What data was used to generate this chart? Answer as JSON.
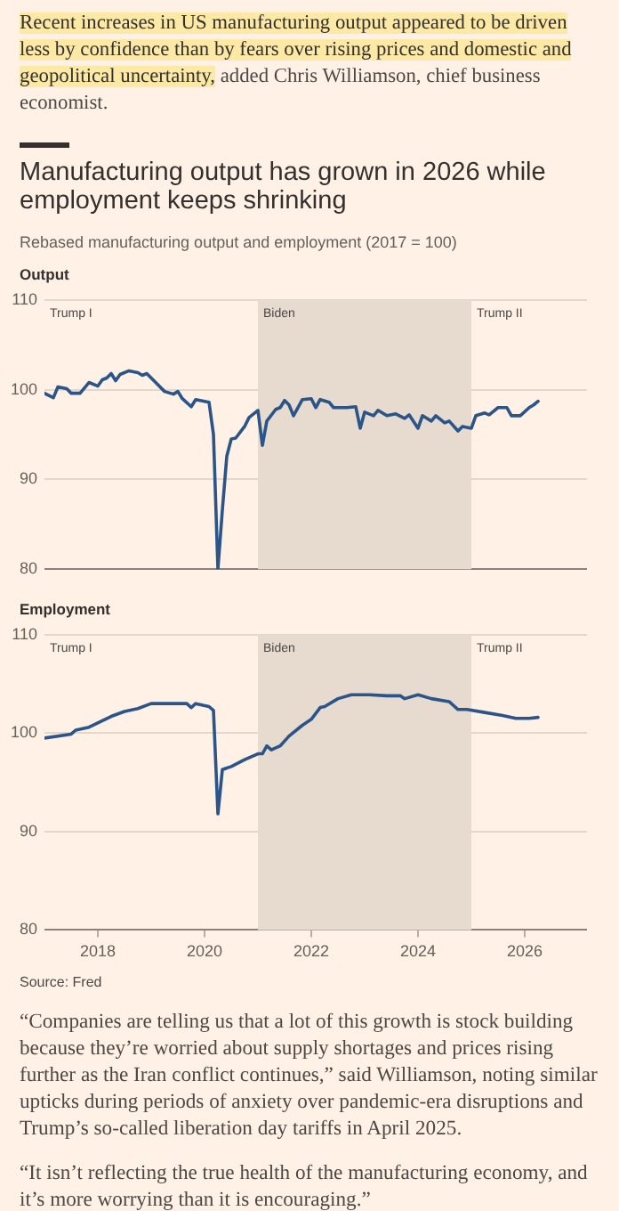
{
  "chart_data": [
    {
      "type": "line",
      "title": "Manufacturing output has grown in 2026 while employment keeps shrinking",
      "subtitle": "Rebased manufacturing output and employment (2017 = 100)",
      "ylabel": "Output",
      "annotations": [
        "Trump I",
        "Recent increases in US manufacturing output appeared to be driven less by confidence than by fears over rising prices and domestic and geopolitical uncertainty,",
        "added Chris Williamson, chief business economist.",
        {
          "text": "Trump II",
          "x": "2025-01",
          "y": 110
        }
      ],
      "series": [
        {
          "color": "#2b5589",
          "x": [
            "2017-01",
            "2017-03",
            "2017-04",
            "2017-06",
            "2017-07",
            "2017-09",
            "2017-11",
            "2018-01",
            "2018-02",
            "2018-03",
            "2018-04",
            "2018-05",
            "2018-06",
            "2018-08",
            "2018-10",
            "2018-11",
            "2018-12",
            "2019-02",
            "2019-04",
            "2019-06",
            "2019-07",
            "2019-08",
            "2019-10",
            "2019-11",
            "2020-01",
            "2020-02",
            "2020-03",
            "2020-04",
            "2020-05",
            "2020-06",
            "2020-07",
            "2020-08",
            "2020-10",
            "2020-11",
            "2021-01",
            "2021-02",
            "2021-03",
            "2021-05",
            "2021-06",
            "2021-07",
            "2021-08",
            "2021-09",
            "2021-11",
            "2022-01",
            "2022-02",
            "2022-03",
            "2022-05",
            "2022-06",
            "2022-09",
            "2022-11",
            "2022-12",
            "2023-01",
            "2023-03",
            "2023-04",
            "2023-06",
            "2023-08",
            "2023-10",
            "2023-11",
            "2024-01",
            "2024-02",
            "2024-04",
            "2024-05",
            "2024-07",
            "2024-08",
            "2024-10",
            "2024-11",
            "2025-01",
            "2025-02",
            "2025-04",
            "2025-05",
            "2025-07",
            "2025-09",
            "2025-10",
            "2025-12",
            "2026-02",
            "2026-03",
            "2026-04"
          ],
          "values": [
            99.6,
            99.1,
            100.3,
            100.1,
            99.6,
            99.6,
            100.8,
            100.4,
            101.1,
            101.3,
            101.8,
            101.0,
            101.7,
            102.1,
            101.9,
            101.6,
            101.8,
            100.8,
            99.8,
            99.5,
            99.8,
            99.0,
            98.1,
            98.9,
            98.7,
            98.6,
            95.0,
            80.0,
            86.6,
            92.6,
            94.5,
            94.6,
            95.9,
            96.9,
            97.7,
            93.8,
            96.5,
            97.8,
            98.0,
            98.8,
            98.3,
            97.1,
            98.9,
            99.0,
            98.0,
            98.9,
            98.6,
            98.0,
            98.0,
            98.1,
            95.7,
            97.5,
            97.1,
            97.7,
            97.1,
            97.3,
            96.8,
            97.2,
            95.7,
            97.1,
            96.5,
            97.1,
            96.3,
            96.5,
            95.4,
            95.9,
            95.7,
            97.1,
            97.4,
            97.2,
            98.0,
            98.0,
            97.1,
            97.1,
            98.0,
            98.3,
            98.7
          ]
        }
      ],
      "xlim": [
        "2017-01",
        "2027-03"
      ],
      "xticks": [
        "2018",
        "2020",
        "2022",
        "2024",
        "2026"
      ],
      "ylim": [
        80,
        110
      ],
      "yticks": [
        80,
        90,
        100,
        110
      ],
      "grid": "y",
      "tick_labels": "y",
      "marker": "none",
      "bands": [
        {
          "axis": "x",
          "from": "2021-01",
          "to": "2025-01",
          "label": "Biden",
          "color": "#e7dbd0"
        }
      ]
    },
    {
      "type": "line",
      "ylabel": "Employment",
      "annotations": [
        "Trump I",
        "Source: Fred",
        "“Companies are telling us that a lot of this growth is stock building because they’re worried about supply shortages and prices rising further as the Iran conflict continues,” said Williamson, noting similar upticks during periods of anxiety over pandemic-era disruptions and Trump’s so-called liberation day tariffs in April 2025.",
        "“It isn’t reflecting the true health of the manufacturing economy, and it’s more worrying than it is encouraging.”",
        {
          "text": "Trump II",
          "x": "2025-01",
          "y": 110
        }
      ],
      "series": [
        {
          "color": "#2b5589",
          "x": [
            "2017-01",
            "2017-07",
            "2017-08",
            "2017-11",
            "2018-04",
            "2018-07",
            "2018-10",
            "2019-01",
            "2019-06",
            "2019-09",
            "2019-10",
            "2019-11",
            "2020-02",
            "2020-03",
            "2020-04",
            "2020-05",
            "2020-07",
            "2020-10",
            "2021-01",
            "2021-02",
            "2021-03",
            "2021-04",
            "2021-06",
            "2021-08",
            "2021-11",
            "2022-01",
            "2022-03",
            "2022-04",
            "2022-07",
            "2022-10",
            "2023-02",
            "2023-06",
            "2023-09",
            "2023-10",
            "2024-01",
            "2024-04",
            "2024-08",
            "2024-10",
            "2024-12",
            "2025-04",
            "2025-08",
            "2025-11",
            "2026-02",
            "2026-04"
          ],
          "values": [
            99.5,
            99.9,
            100.3,
            100.6,
            101.7,
            102.2,
            102.5,
            103.0,
            103.0,
            103.0,
            102.6,
            103.0,
            102.7,
            102.3,
            91.8,
            96.3,
            96.6,
            97.3,
            97.9,
            97.9,
            98.7,
            98.3,
            98.7,
            99.7,
            100.8,
            101.4,
            102.6,
            102.7,
            103.5,
            103.9,
            103.9,
            103.8,
            103.8,
            103.5,
            103.9,
            103.5,
            103.2,
            102.4,
            102.4,
            102.1,
            101.8,
            101.5,
            101.5,
            101.6
          ]
        }
      ],
      "xlim": [
        "2017-01",
        "2027-03"
      ],
      "xticks": [
        "2018",
        "2020",
        "2022",
        "2024",
        "2026"
      ],
      "ylim": [
        80,
        110
      ],
      "yticks": [
        80,
        90,
        100,
        110
      ],
      "grid": "y",
      "marker": "none",
      "bands": [
        {
          "axis": "x",
          "from": "2021-01",
          "to": "2025-01",
          "label": "Biden",
          "color": "#e7dbd0"
        }
      ]
    }
  ]
}
